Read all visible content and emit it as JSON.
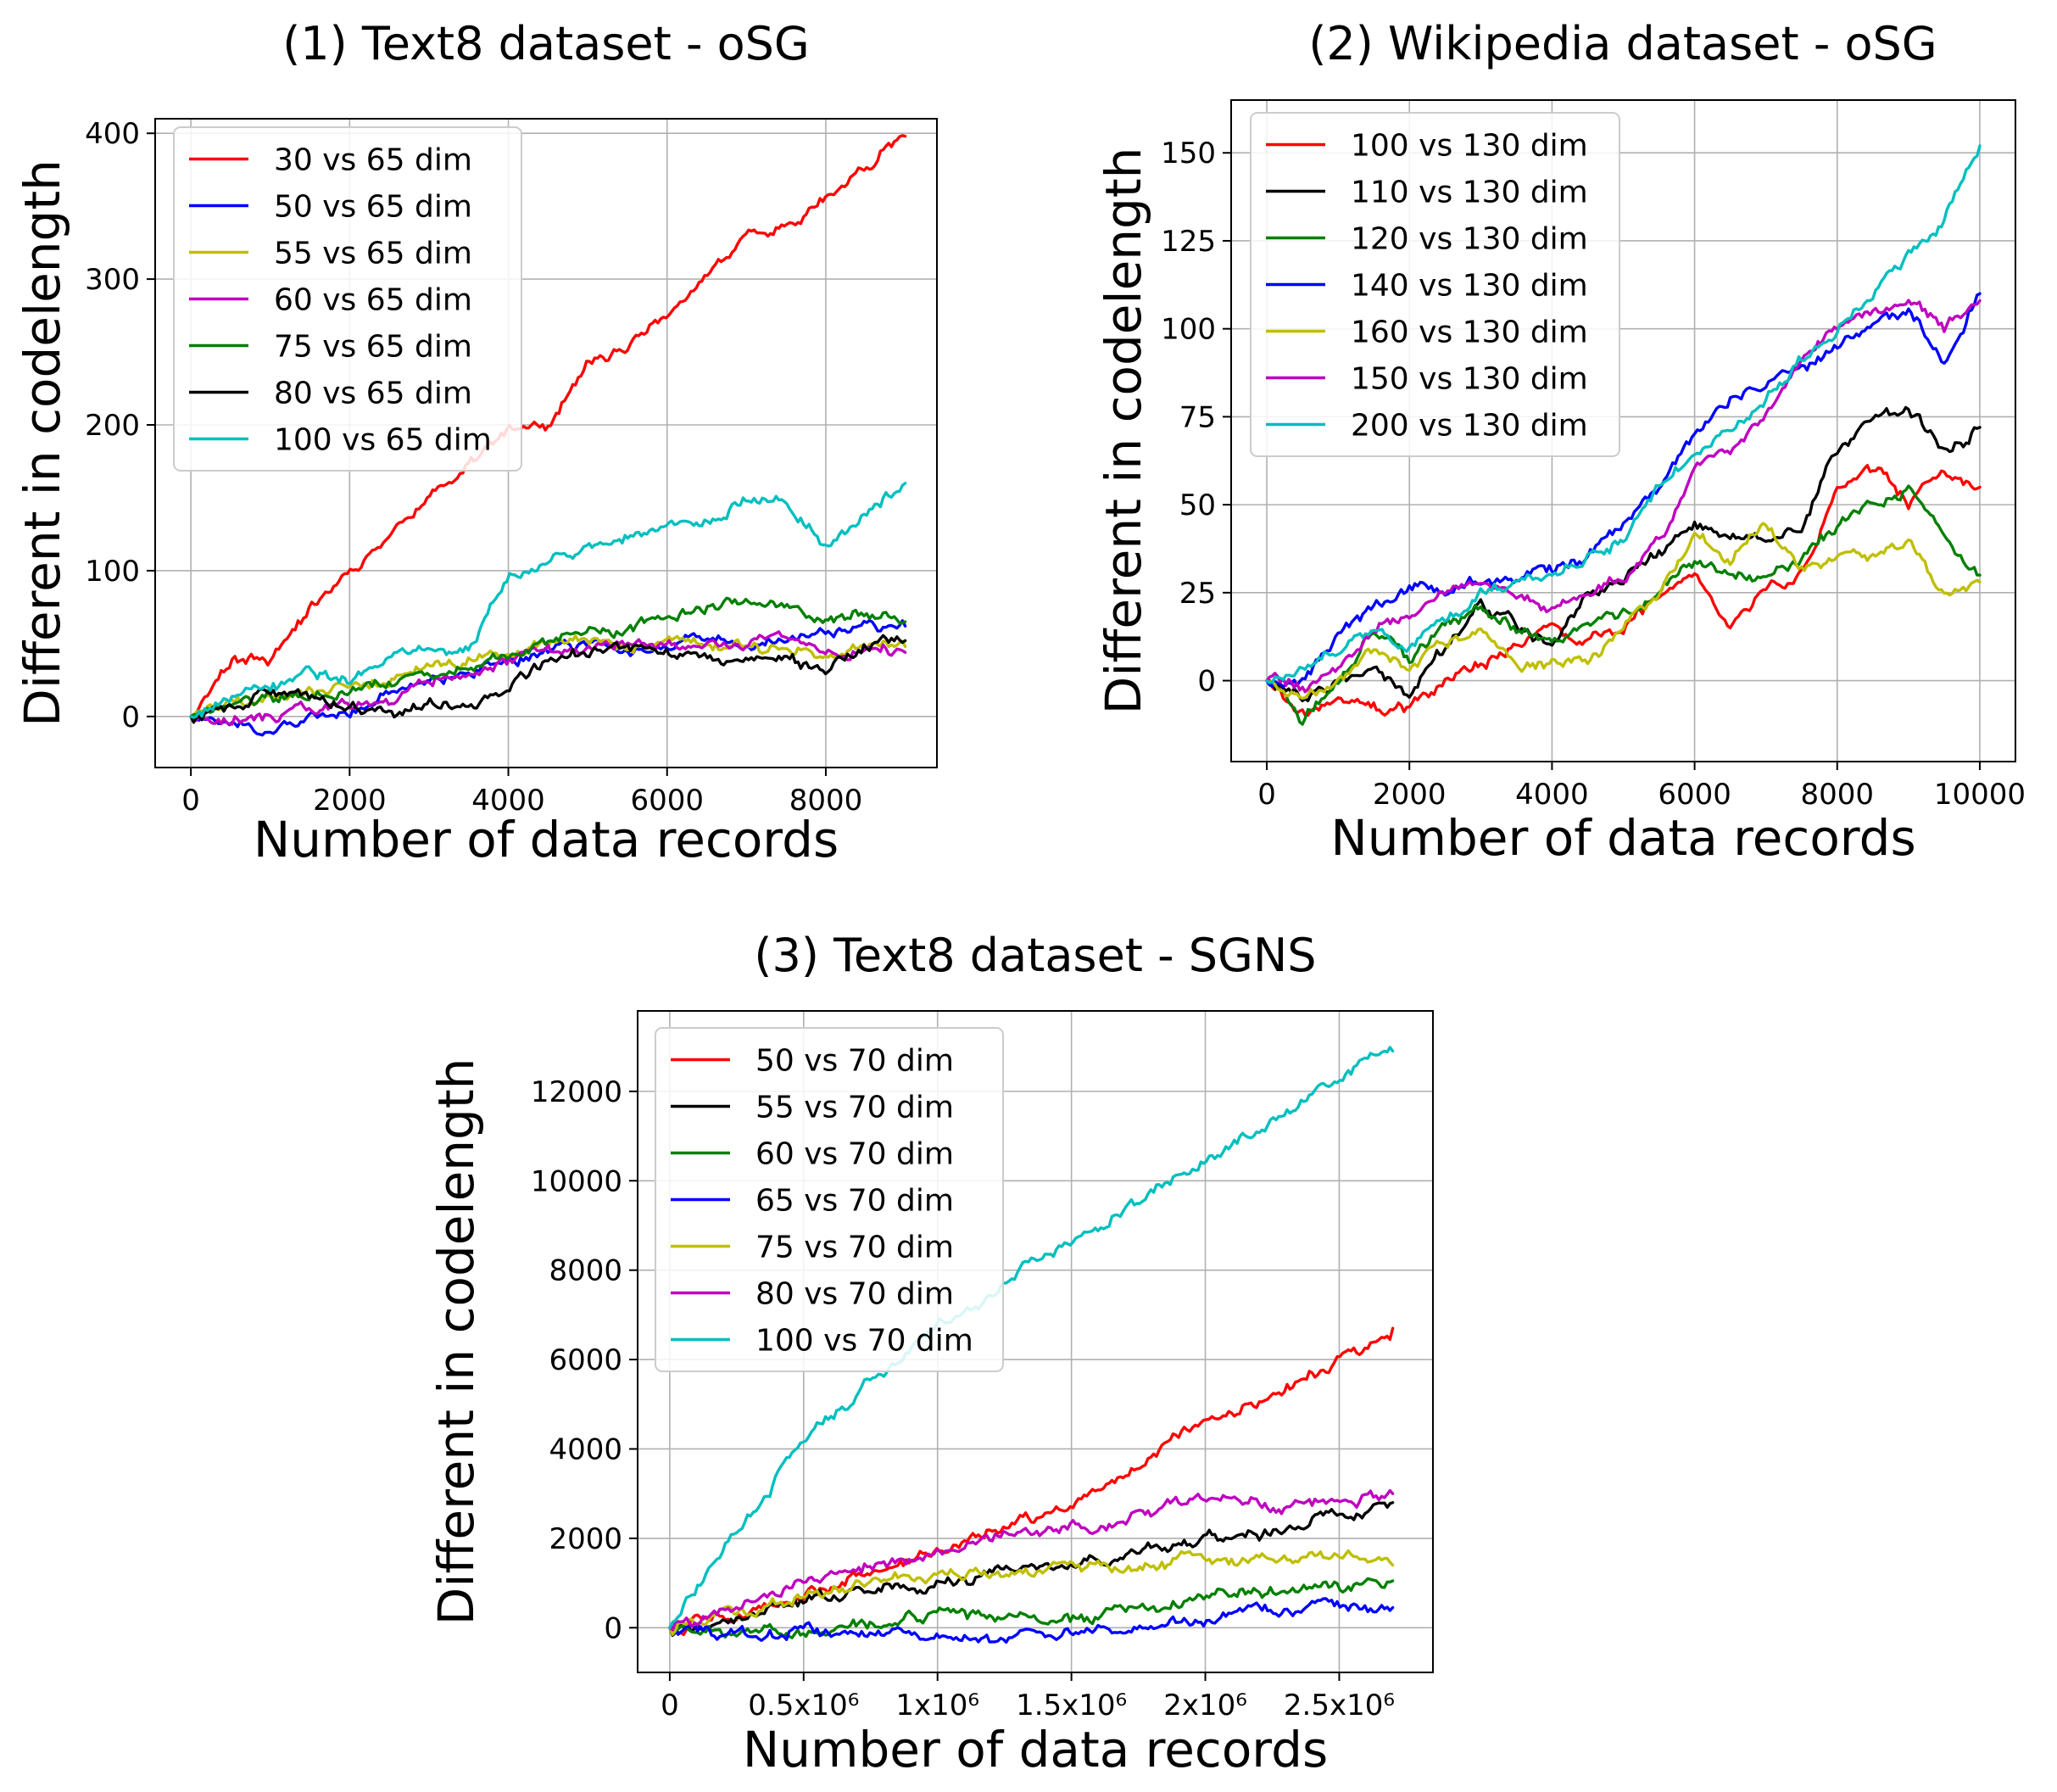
{
  "chart_data": [
    {
      "type": "line",
      "title": "(1) Text8 dataset - oSG",
      "xlabel": "Number of data records",
      "ylabel": "Different in codelength",
      "xlim": [
        -450,
        9400
      ],
      "ylim": [
        -35,
        410
      ],
      "xticks": [
        {
          "v": 0,
          "label": "0"
        },
        {
          "v": 2000,
          "label": "2000"
        },
        {
          "v": 4000,
          "label": "4000"
        },
        {
          "v": 6000,
          "label": "6000"
        },
        {
          "v": 8000,
          "label": "8000"
        }
      ],
      "yticks": [
        {
          "v": 0,
          "label": "0"
        },
        {
          "v": 100,
          "label": "100"
        },
        {
          "v": 200,
          "label": "200"
        },
        {
          "v": 300,
          "label": "300"
        },
        {
          "v": 400,
          "label": "400"
        }
      ],
      "grid": true,
      "legend": "top-left",
      "series": [
        {
          "name": "30 vs 65 dim",
          "color": "#ff0000",
          "x": [
            0,
            500,
            1000,
            1500,
            2000,
            2500,
            3000,
            3500,
            4000,
            4500,
            5000,
            5500,
            6000,
            6500,
            7000,
            7500,
            8000,
            8500,
            9000
          ],
          "values": [
            0,
            40,
            40,
            75,
            100,
            125,
            150,
            175,
            195,
            200,
            240,
            255,
            275,
            300,
            330,
            340,
            355,
            375,
            398
          ]
        },
        {
          "name": "50 vs 65 dim",
          "color": "#0000ff",
          "x": [
            0,
            500,
            1000,
            1500,
            2000,
            2500,
            3000,
            3500,
            4000,
            4500,
            5000,
            5500,
            6000,
            6500,
            7000,
            7500,
            8000,
            8500,
            9000
          ],
          "values": [
            0,
            -5,
            -12,
            0,
            5,
            15,
            25,
            30,
            35,
            45,
            50,
            45,
            50,
            55,
            50,
            55,
            60,
            65,
            62
          ]
        },
        {
          "name": "55 vs 65 dim",
          "color": "#bfbf00",
          "x": [
            0,
            500,
            1000,
            1500,
            2000,
            2500,
            3000,
            3500,
            4000,
            4500,
            5000,
            5500,
            6000,
            6500,
            7000,
            7500,
            8000,
            8500,
            9000
          ],
          "values": [
            0,
            10,
            15,
            18,
            22,
            25,
            32,
            38,
            42,
            50,
            52,
            48,
            50,
            46,
            48,
            45,
            42,
            50,
            48
          ]
        },
        {
          "name": "60 vs 65 dim",
          "color": "#bf00bf",
          "x": [
            0,
            500,
            1000,
            1500,
            2000,
            2500,
            3000,
            3500,
            4000,
            4500,
            5000,
            5500,
            6000,
            6500,
            7000,
            7500,
            8000,
            8500,
            9000
          ],
          "values": [
            0,
            -2,
            0,
            5,
            8,
            12,
            25,
            32,
            38,
            45,
            48,
            50,
            52,
            48,
            50,
            52,
            45,
            48,
            44
          ]
        },
        {
          "name": "75 vs 65 dim",
          "color": "#008000",
          "x": [
            0,
            500,
            1000,
            1500,
            2000,
            2500,
            3000,
            3500,
            4000,
            4500,
            5000,
            5500,
            6000,
            6500,
            7000,
            7500,
            8000,
            8500,
            9000
          ],
          "values": [
            0,
            8,
            12,
            15,
            18,
            22,
            30,
            35,
            42,
            52,
            58,
            60,
            70,
            75,
            80,
            78,
            65,
            70,
            65
          ]
        },
        {
          "name": "80 vs 65 dim",
          "color": "#000000",
          "x": [
            0,
            500,
            1000,
            1500,
            2000,
            2500,
            3000,
            3500,
            4000,
            4500,
            5000,
            5500,
            6000,
            6500,
            7000,
            7500,
            8000,
            8500,
            9000
          ],
          "values": [
            0,
            5,
            15,
            12,
            10,
            0,
            10,
            8,
            22,
            38,
            45,
            48,
            45,
            42,
            40,
            38,
            32,
            48,
            52
          ]
        },
        {
          "name": "100 vs 65 dim",
          "color": "#00bfbf",
          "x": [
            0,
            500,
            1000,
            1500,
            2000,
            2500,
            3000,
            3500,
            4000,
            4500,
            5000,
            5500,
            6000,
            6500,
            7000,
            7500,
            8000,
            8500,
            9000
          ],
          "values": [
            0,
            12,
            22,
            28,
            25,
            38,
            45,
            45,
            95,
            108,
            115,
            122,
            130,
            135,
            150,
            145,
            118,
            140,
            160
          ]
        }
      ]
    },
    {
      "type": "line",
      "title": "(2) Wikipedia dataset - oSG",
      "xlabel": "Number of data records",
      "ylabel": "Different in codelength",
      "xlim": [
        -500,
        10500
      ],
      "ylim": [
        -23,
        165
      ],
      "xticks": [
        {
          "v": 0,
          "label": "0"
        },
        {
          "v": 2000,
          "label": "2000"
        },
        {
          "v": 4000,
          "label": "4000"
        },
        {
          "v": 6000,
          "label": "6000"
        },
        {
          "v": 8000,
          "label": "8000"
        },
        {
          "v": 10000,
          "label": "10000"
        }
      ],
      "yticks": [
        {
          "v": 0,
          "label": "0"
        },
        {
          "v": 25,
          "label": "25"
        },
        {
          "v": 50,
          "label": "50"
        },
        {
          "v": 75,
          "label": "75"
        },
        {
          "v": 100,
          "label": "100"
        },
        {
          "v": 125,
          "label": "125"
        },
        {
          "v": 150,
          "label": "150"
        }
      ],
      "grid": true,
      "legend": "top-left",
      "series": [
        {
          "name": "100 vs 130 dim",
          "color": "#ff0000",
          "x": [
            0,
            500,
            1000,
            1500,
            2000,
            2500,
            3000,
            3500,
            4000,
            4500,
            5000,
            5500,
            6000,
            6500,
            7000,
            7500,
            8000,
            8500,
            9000,
            9500,
            10000
          ],
          "values": [
            0,
            -10,
            -5,
            -8,
            -8,
            0,
            5,
            10,
            15,
            10,
            15,
            25,
            30,
            15,
            25,
            30,
            55,
            60,
            50,
            60,
            55
          ]
        },
        {
          "name": "110 vs 130 dim",
          "color": "#000000",
          "x": [
            0,
            500,
            1000,
            1500,
            2000,
            2500,
            3000,
            3500,
            4000,
            4500,
            5000,
            5500,
            6000,
            6500,
            7000,
            7500,
            8000,
            8500,
            9000,
            9500,
            10000
          ],
          "values": [
            0,
            -5,
            0,
            5,
            -5,
            10,
            20,
            15,
            10,
            25,
            30,
            35,
            45,
            40,
            40,
            45,
            65,
            75,
            78,
            65,
            72
          ]
        },
        {
          "name": "120 vs 130 dim",
          "color": "#008000",
          "x": [
            0,
            500,
            1000,
            1500,
            2000,
            2500,
            3000,
            3500,
            4000,
            4500,
            5000,
            5500,
            6000,
            6500,
            7000,
            7500,
            8000,
            8500,
            9000,
            9500,
            10000
          ],
          "values": [
            0,
            -12,
            0,
            15,
            5,
            15,
            20,
            15,
            10,
            15,
            20,
            25,
            35,
            30,
            30,
            35,
            45,
            50,
            55,
            40,
            30
          ]
        },
        {
          "name": "140 vs 130 dim",
          "color": "#0000ff",
          "x": [
            0,
            500,
            1000,
            1500,
            2000,
            2500,
            3000,
            3500,
            4000,
            4500,
            5000,
            5500,
            6000,
            6500,
            7000,
            7500,
            8000,
            8500,
            9000,
            9500,
            10000
          ],
          "values": [
            0,
            0,
            12,
            20,
            28,
            25,
            30,
            30,
            32,
            35,
            45,
            55,
            70,
            80,
            85,
            90,
            95,
            100,
            105,
            90,
            110
          ]
        },
        {
          "name": "160 vs 130 dim",
          "color": "#bfbf00",
          "x": [
            0,
            500,
            1000,
            1500,
            2000,
            2500,
            3000,
            3500,
            4000,
            4500,
            5000,
            5500,
            6000,
            6500,
            7000,
            7500,
            8000,
            8500,
            9000,
            9500,
            10000
          ],
          "values": [
            0,
            -5,
            0,
            10,
            5,
            10,
            15,
            5,
            5,
            5,
            15,
            25,
            40,
            35,
            45,
            30,
            35,
            35,
            40,
            25,
            28
          ]
        },
        {
          "name": "150 vs 130 dim",
          "color": "#bf00bf",
          "x": [
            0,
            500,
            1000,
            1500,
            2000,
            2500,
            3000,
            3500,
            4000,
            4500,
            5000,
            5500,
            6000,
            6500,
            7000,
            7500,
            8000,
            8500,
            9000,
            9500,
            10000
          ],
          "values": [
            0,
            -2,
            5,
            15,
            20,
            25,
            30,
            25,
            20,
            25,
            30,
            40,
            60,
            65,
            75,
            90,
            100,
            105,
            108,
            100,
            108
          ]
        },
        {
          "name": "200 vs 130 dim",
          "color": "#00bfbf",
          "x": [
            0,
            500,
            1000,
            1500,
            2000,
            2500,
            3000,
            3500,
            4000,
            4500,
            5000,
            5500,
            6000,
            6500,
            7000,
            7500,
            8000,
            8500,
            9000,
            9500,
            10000
          ],
          "values": [
            0,
            5,
            10,
            12,
            10,
            18,
            25,
            28,
            30,
            35,
            40,
            55,
            65,
            72,
            80,
            90,
            100,
            110,
            120,
            130,
            152
          ]
        }
      ]
    },
    {
      "type": "line",
      "title": "(3) Text8 dataset - SGNS",
      "xlabel": "Number of data records",
      "ylabel": "Different in codelength",
      "xlim": [
        -120000,
        2850000
      ],
      "ylim": [
        -1000,
        13800
      ],
      "xticks": [
        {
          "v": 0,
          "label": "0"
        },
        {
          "v": 500000,
          "label": "0.5x10⁶"
        },
        {
          "v": 1000000,
          "label": "1x10⁶"
        },
        {
          "v": 1500000,
          "label": "1.5x10⁶"
        },
        {
          "v": 2000000,
          "label": "2x10⁶"
        },
        {
          "v": 2500000,
          "label": "2.5x10⁶"
        }
      ],
      "yticks": [
        {
          "v": 0,
          "label": "0"
        },
        {
          "v": 2000,
          "label": "2000"
        },
        {
          "v": 4000,
          "label": "4000"
        },
        {
          "v": 6000,
          "label": "6000"
        },
        {
          "v": 8000,
          "label": "8000"
        },
        {
          "v": 10000,
          "label": "10000"
        },
        {
          "v": 12000,
          "label": "12000"
        }
      ],
      "grid": true,
      "legend": "top-left",
      "series": [
        {
          "name": "50 vs 70 dim",
          "color": "#ff0000",
          "x": [
            0,
            250000,
            500000,
            750000,
            1000000,
            1250000,
            1500000,
            1750000,
            2000000,
            2250000,
            2500000,
            2700000
          ],
          "values": [
            0,
            300,
            700,
            1300,
            1800,
            2300,
            2800,
            3600,
            4600,
            5200,
            6000,
            6700
          ]
        },
        {
          "name": "55 vs 70 dim",
          "color": "#000000",
          "x": [
            0,
            250000,
            500000,
            750000,
            1000000,
            1250000,
            1500000,
            1750000,
            2000000,
            2250000,
            2500000,
            2700000
          ],
          "values": [
            0,
            200,
            600,
            900,
            1000,
            1200,
            1400,
            1700,
            2000,
            2200,
            2500,
            2800
          ]
        },
        {
          "name": "60 vs 70 dim",
          "color": "#008000",
          "x": [
            0,
            250000,
            500000,
            750000,
            1000000,
            1250000,
            1500000,
            1750000,
            2000000,
            2250000,
            2500000,
            2700000
          ],
          "values": [
            0,
            -100,
            -150,
            100,
            200,
            250,
            150,
            400,
            700,
            850,
            900,
            1050
          ]
        },
        {
          "name": "65 vs 70 dim",
          "color": "#0000ff",
          "x": [
            0,
            250000,
            500000,
            750000,
            1000000,
            1250000,
            1500000,
            1750000,
            2000000,
            2250000,
            2500000,
            2700000
          ],
          "values": [
            0,
            -150,
            -50,
            -100,
            -200,
            -150,
            -150,
            0,
            200,
            350,
            450,
            450
          ]
        },
        {
          "name": "75 vs 70 dim",
          "color": "#bfbf00",
          "x": [
            0,
            250000,
            500000,
            750000,
            1000000,
            1250000,
            1500000,
            1750000,
            2000000,
            2250000,
            2500000,
            2700000
          ],
          "values": [
            0,
            300,
            700,
            1000,
            1100,
            1150,
            1400,
            1300,
            1600,
            1450,
            1650,
            1400
          ]
        },
        {
          "name": "80 vs 70 dim",
          "color": "#bf00bf",
          "x": [
            0,
            250000,
            500000,
            750000,
            1000000,
            1250000,
            1500000,
            1750000,
            2000000,
            2250000,
            2500000,
            2700000
          ],
          "values": [
            0,
            500,
            1000,
            1400,
            1700,
            2000,
            2200,
            2500,
            2900,
            2700,
            2850,
            3000
          ]
        },
        {
          "name": "100 vs 70 dim",
          "color": "#00bfbf",
          "x": [
            0,
            250000,
            500000,
            750000,
            1000000,
            1250000,
            1500000,
            1750000,
            2000000,
            2250000,
            2500000,
            2700000
          ],
          "values": [
            0,
            2200,
            4100,
            5500,
            6700,
            7800,
            8700,
            9500,
            10500,
            11300,
            12300,
            12900
          ]
        }
      ]
    }
  ]
}
